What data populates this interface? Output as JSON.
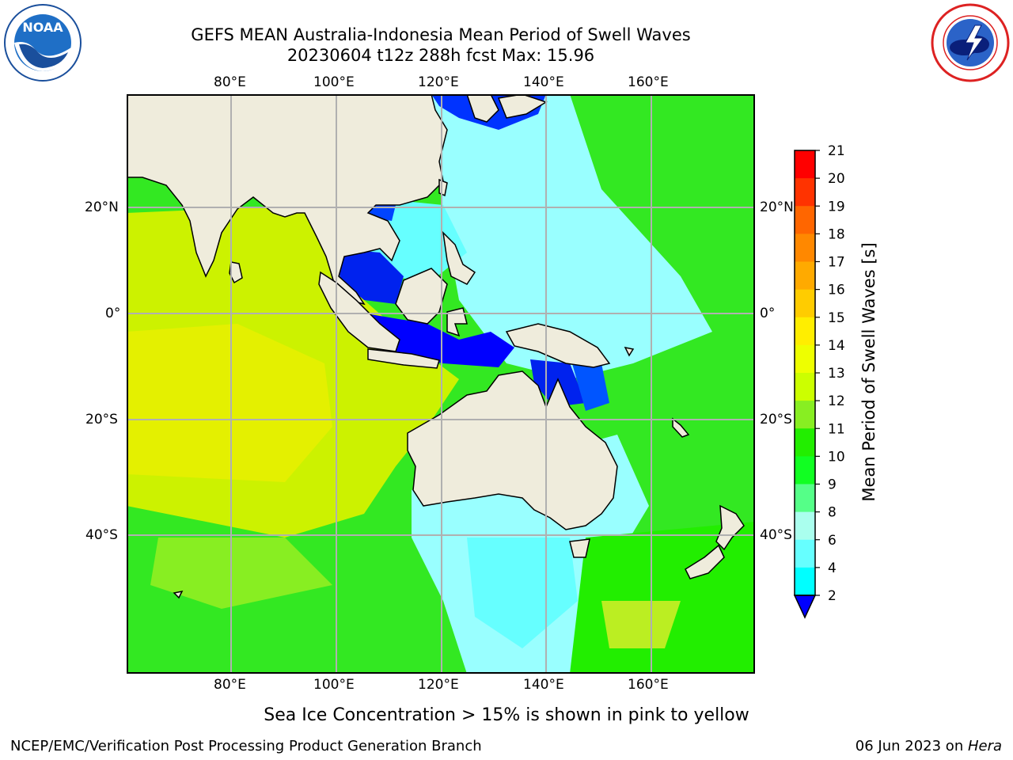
{
  "title": {
    "line1": "GEFS MEAN Australia-Indonesia Mean Period of Swell Waves",
    "line2": "20230604 t12z 288h fcst   Max: 15.96"
  },
  "logos": {
    "left": {
      "name": "noaa-logo",
      "text": "NOAA"
    },
    "right": {
      "name": "nws-logo"
    }
  },
  "map": {
    "lon_ticks": [
      "80°E",
      "100°E",
      "120°E",
      "140°E",
      "160°E"
    ],
    "lat_ticks": [
      "20°N",
      "0°",
      "20°S",
      "40°S"
    ],
    "land_color": "#efecdc",
    "grid_color": "#b0b0b0"
  },
  "colorbar": {
    "label": "Mean Period of Swell Waves [s]",
    "ticks": [
      "21",
      "20",
      "19",
      "18",
      "17",
      "16",
      "15",
      "14",
      "13",
      "12",
      "11",
      "10",
      "9",
      "8",
      "6",
      "4",
      "2"
    ],
    "colors": [
      "#ff0000",
      "#ff3300",
      "#ff6600",
      "#ff8800",
      "#ffaa00",
      "#ffcc00",
      "#ffee00",
      "#eeff00",
      "#ccff00",
      "#88ee22",
      "#22ee00",
      "#11ff22",
      "#55ff88",
      "#aaffee",
      "#66ffff",
      "#00ffff",
      "#0088ff",
      "#0044ff",
      "#0000ff"
    ]
  },
  "notes": {
    "sea_ice": "Sea Ice Concentration > 15% is shown in pink to yellow"
  },
  "footer": {
    "left": "NCEP/EMC/Verification Post Processing Product Generation Branch",
    "date": "06 Jun 2023 on ",
    "host": "Hera"
  }
}
